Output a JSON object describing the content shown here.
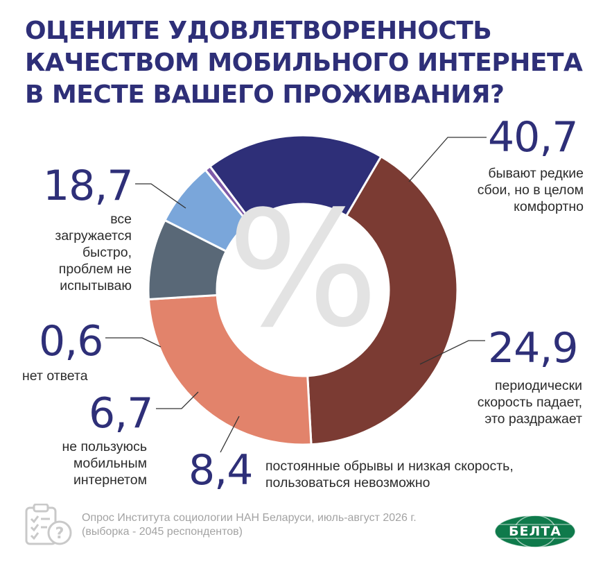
{
  "title_lines": [
    "ОЦЕНИТЕ УДОВЛЕТВОРЕННОСТЬ",
    "КАЧЕСТВОМ МОБИЛЬНОГО ИНТЕРНЕТА",
    "В МЕСТЕ ВАШЕГО ПРОЖИВАНИЯ?"
  ],
  "chart_data": {
    "type": "pie",
    "style": "donut",
    "title": "ОЦЕНИТЕ УДОВЛЕТВОРЕННОСТЬ КАЧЕСТВОМ МОБИЛЬНОГО ИНТЕРНЕТА В МЕСТЕ ВАШЕГО ПРОЖИВАНИЯ?",
    "center_symbol": "%",
    "slices": [
      {
        "value": 40.7,
        "value_label": "40,7",
        "label_lines": [
          "бывают редкие",
          "сбои, но в целом",
          "комфортно"
        ],
        "color": "#7b3b33"
      },
      {
        "value": 24.9,
        "value_label": "24,9",
        "label_lines": [
          "периодически",
          "скорость падает,",
          "это раздражает"
        ],
        "color": "#e2836b"
      },
      {
        "value": 8.4,
        "value_label": "8,4",
        "label_lines": [
          "постоянные обрывы и низкая скорость,",
          "пользоваться невозможно"
        ],
        "color": "#596877"
      },
      {
        "value": 6.7,
        "value_label": "6,7",
        "label_lines": [
          "не пользуюсь",
          "мобильным",
          "интернетом"
        ],
        "color": "#7aa6da"
      },
      {
        "value": 0.6,
        "value_label": "0,6",
        "label_lines": [
          "нет ответа"
        ],
        "color": "#7e5aa8"
      },
      {
        "value": 18.7,
        "value_label": "18,7",
        "label_lines": [
          "все",
          "загружается",
          "быстро,",
          "проблем не",
          "испытываю"
        ],
        "color": "#2e2f78"
      }
    ]
  },
  "source_lines": [
    "Опрос Института социологии НАН Беларуси, июль-август 2026 г.",
    "(выборка - 2045 респондентов)"
  ],
  "logo_text": "БЕЛТА",
  "icons": {
    "source": "clipboard-question-icon",
    "logo": "globe-logo-icon"
  }
}
